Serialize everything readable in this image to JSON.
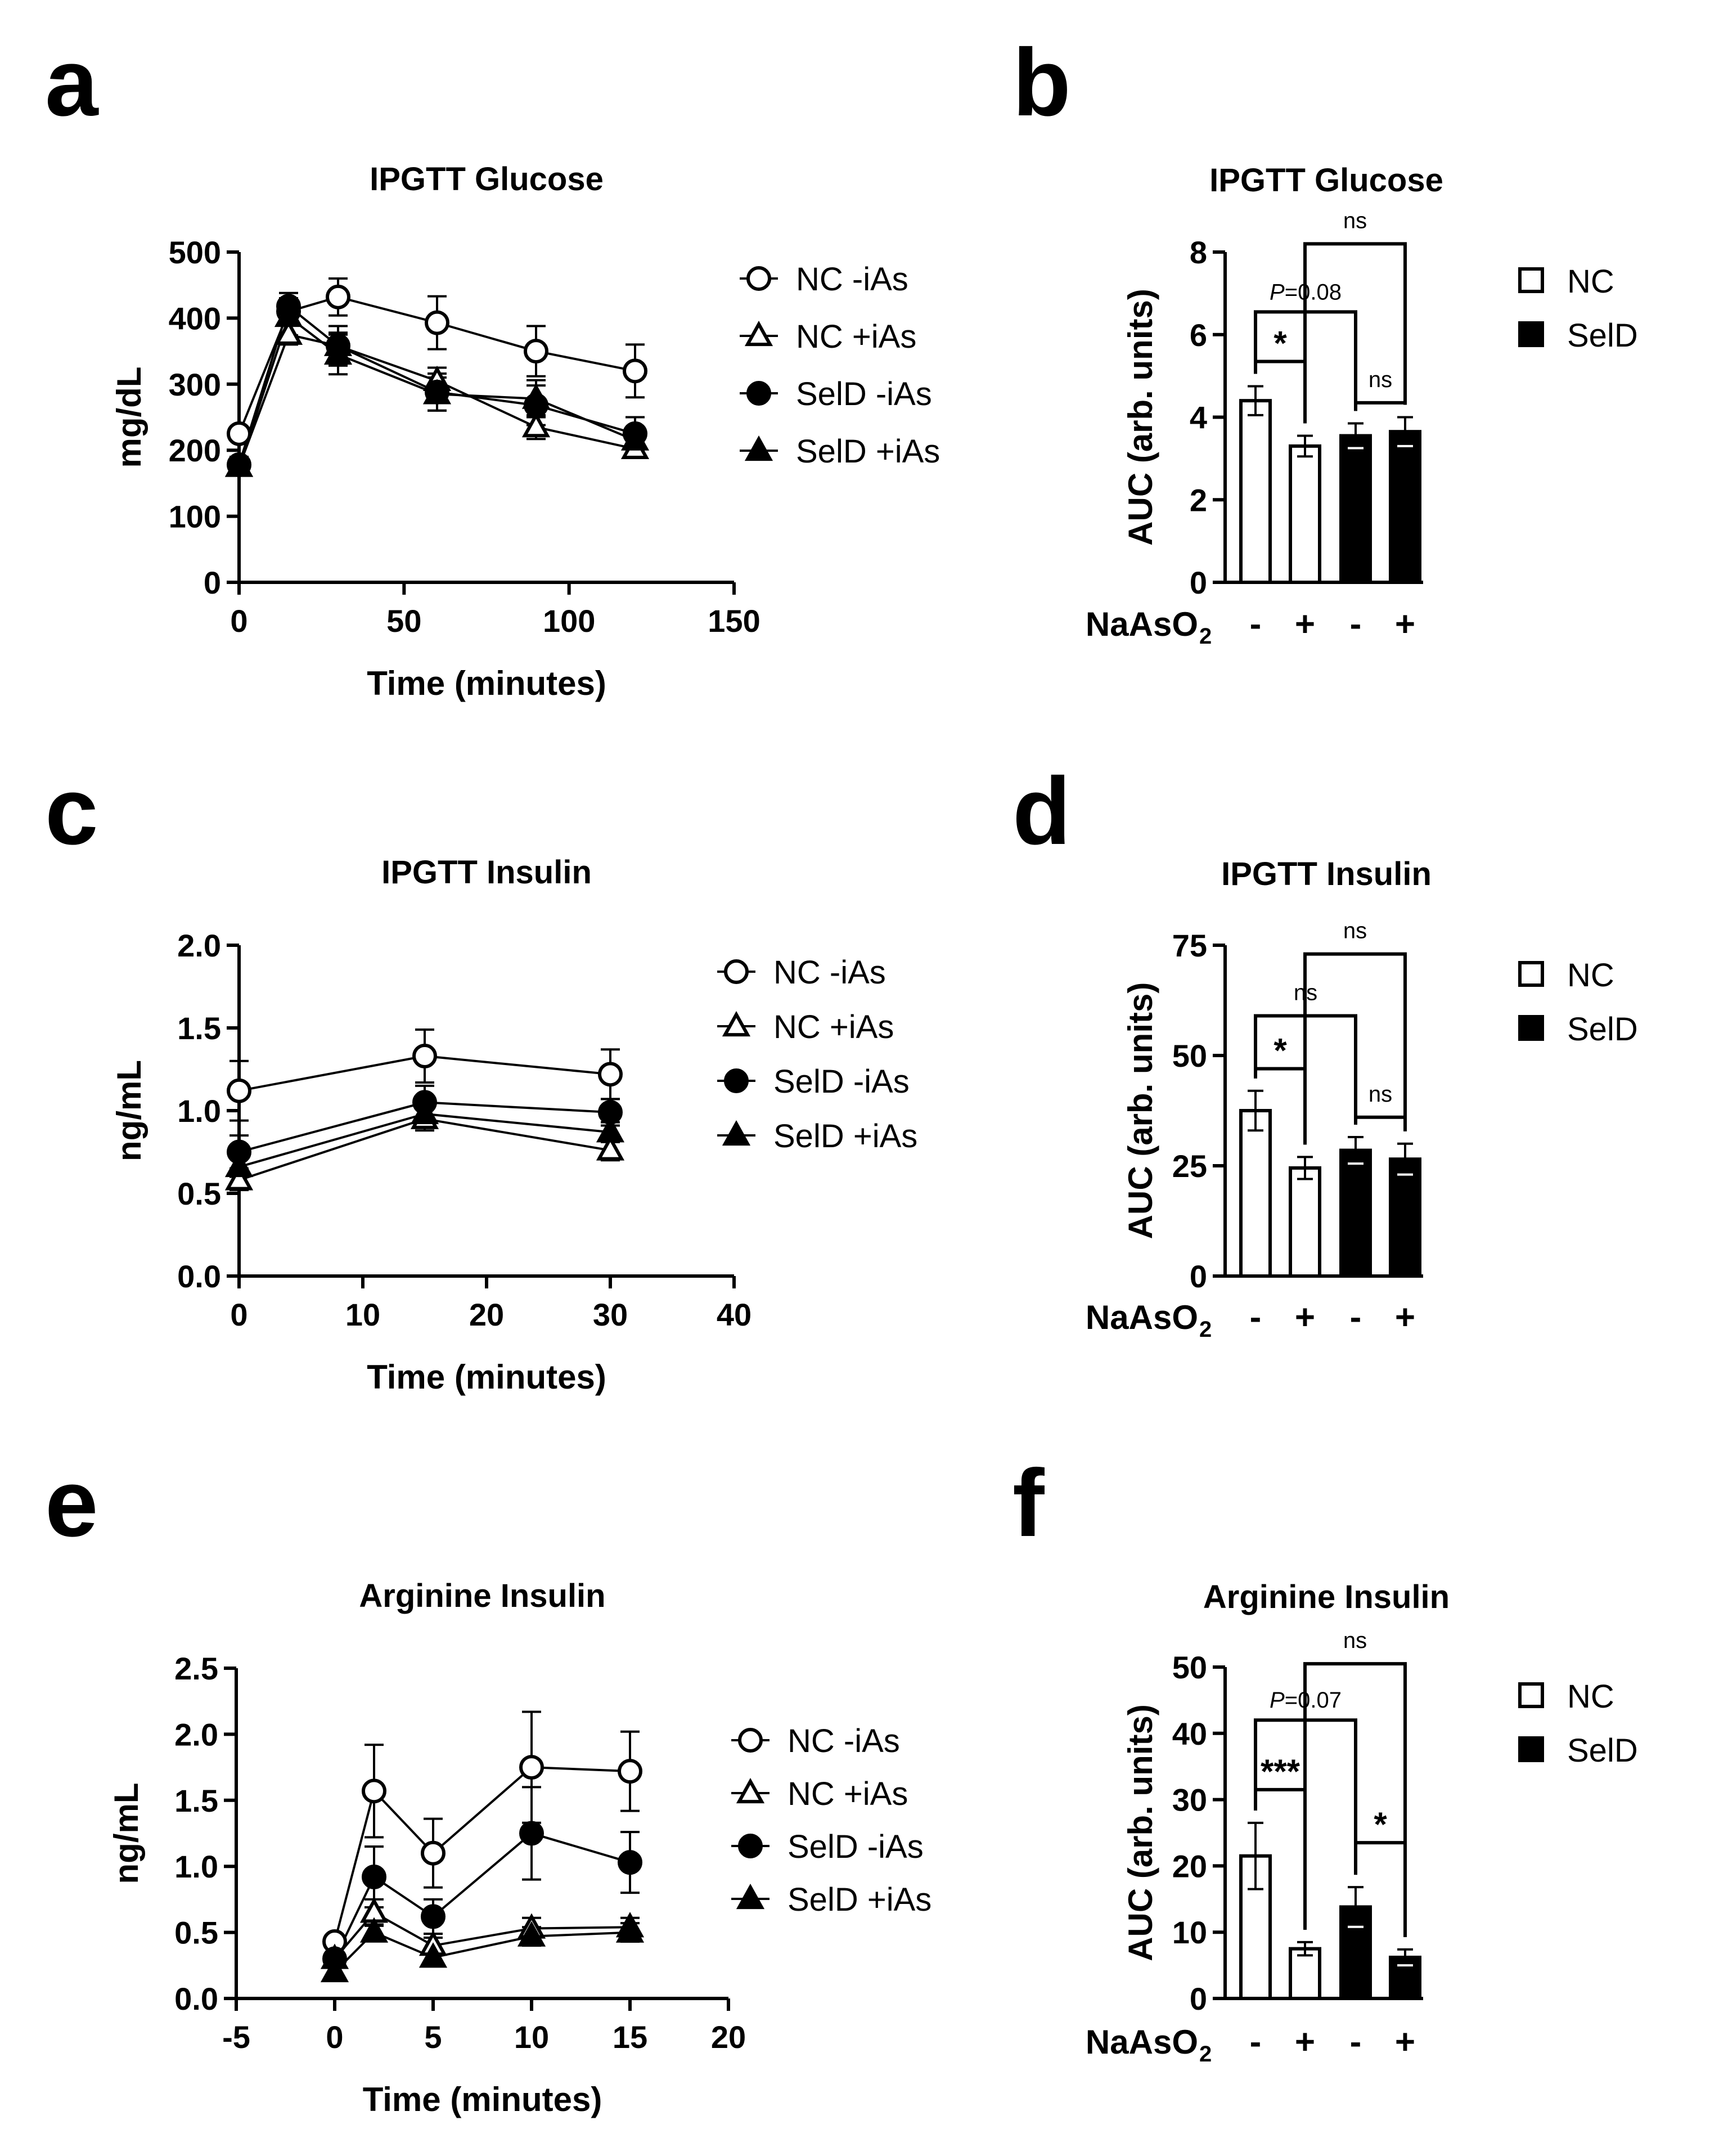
{
  "figure": {
    "panels": [
      "a",
      "b",
      "c",
      "d",
      "e",
      "f"
    ]
  },
  "chart_data": [
    {
      "id": "a",
      "type": "line",
      "title": "IPGTT Glucose",
      "xlabel": "Time (minutes)",
      "ylabel": "mg/dL",
      "xlim": [
        0,
        150
      ],
      "ylim": [
        0,
        500
      ],
      "xticks": [
        "0",
        "50",
        "100",
        "150"
      ],
      "yticks": [
        "0",
        "100",
        "200",
        "300",
        "400",
        "500"
      ],
      "x": [
        0,
        15,
        30,
        60,
        90,
        120
      ],
      "series": [
        {
          "name": "NC -iAs",
          "marker": "open-circle",
          "values": [
            225,
            410,
            432,
            393,
            350,
            320
          ],
          "errors": [
            10,
            20,
            28,
            40,
            38,
            40
          ]
        },
        {
          "name": "NC +iAs",
          "marker": "open-triangle",
          "values": [
            175,
            375,
            358,
            305,
            235,
            202
          ],
          "errors": [
            10,
            15,
            20,
            20,
            18,
            10
          ]
        },
        {
          "name": "SelD -iAs",
          "marker": "filled-circle",
          "values": [
            178,
            418,
            358,
            288,
            268,
            225
          ],
          "errors": [
            12,
            20,
            30,
            28,
            30,
            25
          ]
        },
        {
          "name": "SelD +iAs",
          "marker": "filled-triangle",
          "values": [
            175,
            402,
            345,
            285,
            278,
            215
          ],
          "errors": [
            10,
            28,
            30,
            25,
            28,
            20
          ]
        }
      ]
    },
    {
      "id": "b",
      "type": "bar",
      "title": "IPGTT Glucose",
      "ylabel": "AUC (arb. units)",
      "ylim": [
        0,
        8
      ],
      "yticks": [
        "0",
        "2",
        "4",
        "6",
        "8"
      ],
      "categories": [
        "-",
        "+",
        "-",
        "+"
      ],
      "xlabel": "NaAsO",
      "xlabel_sub": "2",
      "values": [
        4.4,
        3.3,
        3.55,
        3.65
      ],
      "errors": [
        0.35,
        0.25,
        0.3,
        0.35
      ],
      "groups": [
        "NC",
        "NC",
        "SelD",
        "SelD"
      ],
      "legend": [
        "NC",
        "SelD"
      ],
      "annotations": [
        {
          "from": 0,
          "to": 1,
          "label": "*",
          "level": 5.35
        },
        {
          "from": 0,
          "to": 2,
          "label_prefix": "P",
          "label": "=0.08",
          "level": 6.55
        },
        {
          "from": 2,
          "to": 3,
          "label": "ns",
          "level": 4.35
        },
        {
          "from": 1,
          "to": 3,
          "label": "ns",
          "level": 8.2
        }
      ]
    },
    {
      "id": "c",
      "type": "line",
      "title": "IPGTT Insulin",
      "xlabel": "Time (minutes)",
      "ylabel": "ng/mL",
      "xlim": [
        0,
        40
      ],
      "ylim": [
        0,
        2
      ],
      "xticks": [
        "0",
        "10",
        "20",
        "30",
        "40"
      ],
      "yticks": [
        "0.0",
        "0.5",
        "1.0",
        "1.5",
        "2.0"
      ],
      "x": [
        0,
        15,
        30
      ],
      "series": [
        {
          "name": "NC -iAs",
          "marker": "open-circle",
          "values": [
            1.12,
            1.33,
            1.22
          ],
          "errors": [
            0.18,
            0.16,
            0.15
          ]
        },
        {
          "name": "NC +iAs",
          "marker": "open-triangle",
          "values": [
            0.58,
            0.95,
            0.76
          ],
          "errors": [
            0.06,
            0.07,
            0.06
          ]
        },
        {
          "name": "SelD -iAs",
          "marker": "filled-circle",
          "values": [
            0.75,
            1.05,
            0.99
          ],
          "errors": [
            0.1,
            0.1,
            0.08
          ]
        },
        {
          "name": "SelD +iAs",
          "marker": "filled-triangle",
          "values": [
            0.66,
            0.98,
            0.87
          ],
          "errors": [
            0.06,
            0.07,
            0.06
          ]
        }
      ]
    },
    {
      "id": "d",
      "type": "bar",
      "title": "IPGTT Insulin",
      "ylabel": "AUC (arb. units)",
      "ylim": [
        0,
        75
      ],
      "yticks": [
        "0",
        "25",
        "50",
        "75"
      ],
      "categories": [
        "-",
        "+",
        "-",
        "+"
      ],
      "xlabel": "NaAsO",
      "xlabel_sub": "2",
      "values": [
        37.5,
        24.5,
        28.5,
        26.5
      ],
      "errors": [
        4.5,
        2.5,
        3.0,
        3.5
      ],
      "groups": [
        "NC",
        "NC",
        "SelD",
        "SelD"
      ],
      "legend": [
        "NC",
        "SelD"
      ],
      "annotations": [
        {
          "from": 0,
          "to": 1,
          "label": "*",
          "level": 47
        },
        {
          "from": 0,
          "to": 2,
          "label": "ns",
          "level": 59
        },
        {
          "from": 2,
          "to": 3,
          "label": "ns",
          "level": 36
        },
        {
          "from": 1,
          "to": 3,
          "label": "ns",
          "level": 73
        }
      ]
    },
    {
      "id": "e",
      "type": "line",
      "title": "Arginine Insulin",
      "xlabel": "Time (minutes)",
      "ylabel": "ng/mL",
      "xlim": [
        -5,
        20
      ],
      "ylim": [
        0,
        2.5
      ],
      "xticks": [
        "-5",
        "0",
        "5",
        "10",
        "15",
        "20"
      ],
      "yticks": [
        "0.0",
        "0.5",
        "1.0",
        "1.5",
        "2.0",
        "2.5"
      ],
      "x": [
        0,
        2,
        5,
        10,
        15
      ],
      "series": [
        {
          "name": "NC -iAs",
          "marker": "open-circle",
          "values": [
            0.43,
            1.57,
            1.1,
            1.75,
            1.72
          ],
          "errors": [
            0.05,
            0.35,
            0.26,
            0.42,
            0.3
          ]
        },
        {
          "name": "NC +iAs",
          "marker": "open-triangle",
          "values": [
            0.3,
            0.65,
            0.4,
            0.53,
            0.54
          ],
          "errors": [
            0.04,
            0.1,
            0.06,
            0.08,
            0.07
          ]
        },
        {
          "name": "SelD -iAs",
          "marker": "filled-circle",
          "values": [
            0.3,
            0.92,
            0.62,
            1.25,
            1.03
          ],
          "errors": [
            0.04,
            0.23,
            0.13,
            0.35,
            0.23
          ]
        },
        {
          "name": "SelD +iAs",
          "marker": "filled-triangle",
          "values": [
            0.2,
            0.5,
            0.31,
            0.47,
            0.5
          ],
          "errors": [
            0.04,
            0.06,
            0.05,
            0.07,
            0.07
          ]
        }
      ]
    },
    {
      "id": "f",
      "type": "bar",
      "title": "Arginine Insulin",
      "ylabel": "AUC (arb. units)",
      "ylim": [
        0,
        50
      ],
      "yticks": [
        "0",
        "10",
        "20",
        "30",
        "40",
        "50"
      ],
      "categories": [
        "-",
        "+",
        "-",
        "+"
      ],
      "xlabel": "NaAsO",
      "xlabel_sub": "2",
      "values": [
        21.5,
        7.5,
        13.8,
        6.2
      ],
      "errors": [
        5.0,
        1.0,
        3.0,
        1.2
      ],
      "groups": [
        "NC",
        "NC",
        "SelD",
        "SelD"
      ],
      "legend": [
        "NC",
        "SelD"
      ],
      "annotations": [
        {
          "from": 0,
          "to": 1,
          "label": "***",
          "level": 31.5
        },
        {
          "from": 0,
          "to": 2,
          "label_prefix": "P",
          "label": "=0.07",
          "level": 42
        },
        {
          "from": 2,
          "to": 3,
          "label": "*",
          "level": 23.5
        },
        {
          "from": 1,
          "to": 3,
          "label": "ns",
          "level": 50.5
        }
      ]
    }
  ]
}
